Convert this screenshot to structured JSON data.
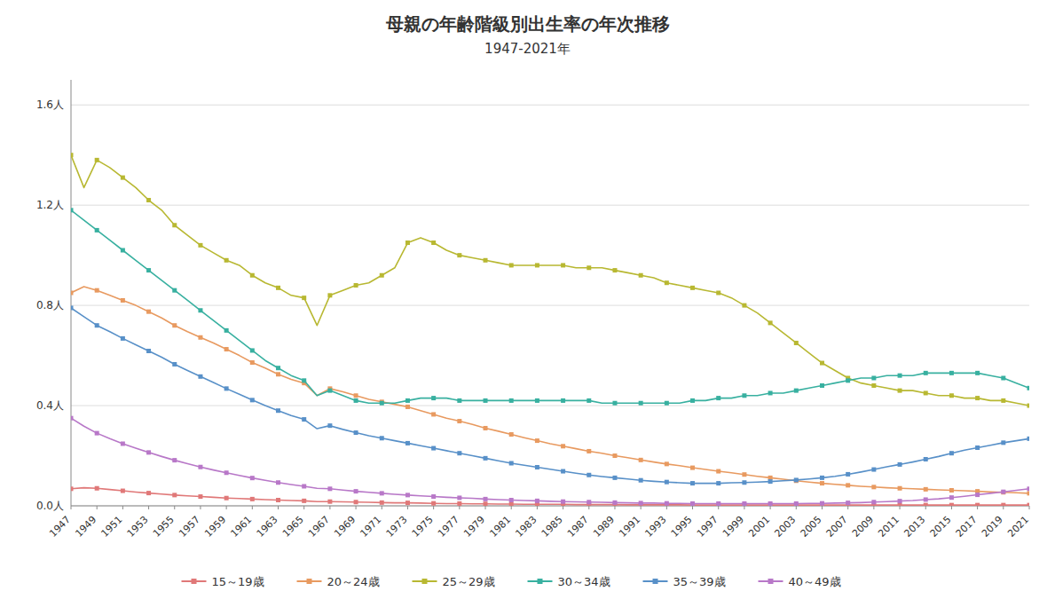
{
  "chart_data": {
    "type": "line",
    "title": "母親の年齢階級別出生率の年次推移",
    "subtitle": "1947-2021年",
    "x": [
      1947,
      1948,
      1949,
      1950,
      1951,
      1952,
      1953,
      1954,
      1955,
      1956,
      1957,
      1958,
      1959,
      1960,
      1961,
      1962,
      1963,
      1964,
      1965,
      1966,
      1967,
      1968,
      1969,
      1970,
      1971,
      1972,
      1973,
      1974,
      1975,
      1976,
      1977,
      1978,
      1979,
      1980,
      1981,
      1982,
      1983,
      1984,
      1985,
      1986,
      1987,
      1988,
      1989,
      1990,
      1991,
      1992,
      1993,
      1994,
      1995,
      1996,
      1997,
      1998,
      1999,
      2000,
      2001,
      2002,
      2003,
      2004,
      2005,
      2006,
      2007,
      2008,
      2009,
      2010,
      2011,
      2012,
      2013,
      2014,
      2015,
      2016,
      2017,
      2018,
      2019,
      2020,
      2021
    ],
    "series": [
      {
        "name": "15～19歳",
        "color": "#e07878",
        "marker": "square",
        "values": [
          0.068,
          0.072,
          0.07,
          0.065,
          0.06,
          0.055,
          0.051,
          0.047,
          0.043,
          0.04,
          0.037,
          0.034,
          0.031,
          0.029,
          0.027,
          0.025,
          0.023,
          0.021,
          0.02,
          0.017,
          0.017,
          0.016,
          0.015,
          0.014,
          0.013,
          0.012,
          0.012,
          0.011,
          0.01,
          0.009,
          0.009,
          0.008,
          0.008,
          0.007,
          0.007,
          0.006,
          0.006,
          0.006,
          0.006,
          0.005,
          0.005,
          0.005,
          0.005,
          0.004,
          0.004,
          0.004,
          0.004,
          0.004,
          0.003,
          0.003,
          0.003,
          0.003,
          0.003,
          0.003,
          0.003,
          0.003,
          0.003,
          0.003,
          0.003,
          0.003,
          0.003,
          0.003,
          0.003,
          0.003,
          0.003,
          0.003,
          0.003,
          0.003,
          0.003,
          0.003,
          0.003,
          0.003,
          0.003,
          0.003,
          0.003
        ]
      },
      {
        "name": "20～24歳",
        "color": "#e89a60",
        "marker": "square",
        "values": [
          0.85,
          0.875,
          0.86,
          0.84,
          0.82,
          0.8,
          0.775,
          0.75,
          0.72,
          0.695,
          0.672,
          0.65,
          0.625,
          0.6,
          0.572,
          0.55,
          0.525,
          0.505,
          0.49,
          0.44,
          0.468,
          0.455,
          0.44,
          0.425,
          0.415,
          0.405,
          0.395,
          0.38,
          0.365,
          0.35,
          0.338,
          0.325,
          0.31,
          0.298,
          0.285,
          0.272,
          0.26,
          0.248,
          0.238,
          0.228,
          0.218,
          0.21,
          0.2,
          0.192,
          0.183,
          0.175,
          0.167,
          0.16,
          0.152,
          0.145,
          0.138,
          0.132,
          0.125,
          0.118,
          0.112,
          0.106,
          0.1,
          0.095,
          0.09,
          0.086,
          0.082,
          0.078,
          0.075,
          0.072,
          0.07,
          0.068,
          0.066,
          0.064,
          0.062,
          0.06,
          0.058,
          0.056,
          0.054,
          0.052,
          0.05
        ]
      },
      {
        "name": "25～29歳",
        "color": "#b8b832",
        "marker": "square",
        "values": [
          1.4,
          1.27,
          1.38,
          1.35,
          1.31,
          1.27,
          1.22,
          1.18,
          1.12,
          1.08,
          1.04,
          1.01,
          0.98,
          0.96,
          0.92,
          0.89,
          0.87,
          0.84,
          0.83,
          0.72,
          0.84,
          0.86,
          0.88,
          0.89,
          0.92,
          0.95,
          1.05,
          1.07,
          1.05,
          1.02,
          1.0,
          0.99,
          0.98,
          0.97,
          0.96,
          0.96,
          0.96,
          0.96,
          0.96,
          0.95,
          0.95,
          0.95,
          0.94,
          0.93,
          0.92,
          0.91,
          0.89,
          0.88,
          0.87,
          0.86,
          0.85,
          0.83,
          0.8,
          0.77,
          0.73,
          0.69,
          0.65,
          0.61,
          0.57,
          0.54,
          0.51,
          0.49,
          0.48,
          0.47,
          0.46,
          0.46,
          0.45,
          0.44,
          0.44,
          0.43,
          0.43,
          0.42,
          0.42,
          0.41,
          0.4
        ]
      },
      {
        "name": "30～34歳",
        "color": "#38b0a0",
        "marker": "square",
        "values": [
          1.18,
          1.14,
          1.1,
          1.06,
          1.02,
          0.98,
          0.94,
          0.9,
          0.86,
          0.82,
          0.78,
          0.74,
          0.7,
          0.66,
          0.62,
          0.58,
          0.55,
          0.52,
          0.5,
          0.44,
          0.46,
          0.44,
          0.42,
          0.41,
          0.41,
          0.41,
          0.42,
          0.43,
          0.43,
          0.43,
          0.42,
          0.42,
          0.42,
          0.42,
          0.42,
          0.42,
          0.42,
          0.42,
          0.42,
          0.42,
          0.42,
          0.41,
          0.41,
          0.41,
          0.41,
          0.41,
          0.41,
          0.41,
          0.42,
          0.42,
          0.43,
          0.43,
          0.44,
          0.44,
          0.45,
          0.45,
          0.46,
          0.47,
          0.48,
          0.49,
          0.5,
          0.51,
          0.51,
          0.52,
          0.52,
          0.52,
          0.53,
          0.53,
          0.53,
          0.53,
          0.53,
          0.52,
          0.51,
          0.49,
          0.47
        ]
      },
      {
        "name": "35～39歳",
        "color": "#5890c8",
        "marker": "square",
        "values": [
          0.79,
          0.755,
          0.72,
          0.695,
          0.668,
          0.643,
          0.618,
          0.593,
          0.565,
          0.54,
          0.516,
          0.492,
          0.468,
          0.445,
          0.422,
          0.4,
          0.38,
          0.36,
          0.345,
          0.308,
          0.32,
          0.305,
          0.292,
          0.28,
          0.27,
          0.26,
          0.25,
          0.24,
          0.23,
          0.22,
          0.21,
          0.2,
          0.19,
          0.18,
          0.17,
          0.162,
          0.154,
          0.146,
          0.138,
          0.13,
          0.123,
          0.117,
          0.112,
          0.107,
          0.102,
          0.098,
          0.095,
          0.092,
          0.09,
          0.09,
          0.09,
          0.092,
          0.093,
          0.095,
          0.097,
          0.1,
          0.103,
          0.107,
          0.112,
          0.118,
          0.126,
          0.135,
          0.145,
          0.156,
          0.165,
          0.175,
          0.186,
          0.197,
          0.21,
          0.222,
          0.232,
          0.242,
          0.252,
          0.26,
          0.268
        ]
      },
      {
        "name": "40～49歳",
        "color": "#b878c8",
        "marker": "square",
        "values": [
          0.35,
          0.318,
          0.29,
          0.268,
          0.248,
          0.23,
          0.213,
          0.197,
          0.182,
          0.168,
          0.155,
          0.143,
          0.132,
          0.121,
          0.111,
          0.102,
          0.093,
          0.085,
          0.078,
          0.07,
          0.068,
          0.063,
          0.058,
          0.054,
          0.05,
          0.046,
          0.043,
          0.04,
          0.037,
          0.034,
          0.032,
          0.03,
          0.027,
          0.025,
          0.023,
          0.021,
          0.02,
          0.018,
          0.017,
          0.016,
          0.015,
          0.014,
          0.013,
          0.012,
          0.011,
          0.011,
          0.01,
          0.01,
          0.009,
          0.009,
          0.009,
          0.009,
          0.009,
          0.009,
          0.009,
          0.009,
          0.009,
          0.01,
          0.01,
          0.011,
          0.012,
          0.013,
          0.015,
          0.017,
          0.019,
          0.021,
          0.025,
          0.028,
          0.033,
          0.038,
          0.044,
          0.05,
          0.056,
          0.062,
          0.068
        ]
      }
    ],
    "xlim": [
      1947,
      2021
    ],
    "xticks": [
      1947,
      1949,
      1951,
      1953,
      1955,
      1957,
      1959,
      1961,
      1963,
      1965,
      1967,
      1969,
      1971,
      1973,
      1975,
      1977,
      1979,
      1981,
      1983,
      1985,
      1987,
      1989,
      1991,
      1993,
      1995,
      1997,
      1999,
      2001,
      2003,
      2005,
      2007,
      2009,
      2011,
      2013,
      2015,
      2017,
      2019,
      2021
    ],
    "ylim": [
      0.0,
      1.7
    ],
    "yticks": [
      {
        "value": 0.0,
        "label": "0.0人"
      },
      {
        "value": 0.4,
        "label": "0.4人"
      },
      {
        "value": 0.8,
        "label": "0.8人"
      },
      {
        "value": 1.2,
        "label": "1.2人"
      },
      {
        "value": 1.6,
        "label": "1.6人"
      }
    ],
    "grid": true,
    "legend": "bottom"
  }
}
